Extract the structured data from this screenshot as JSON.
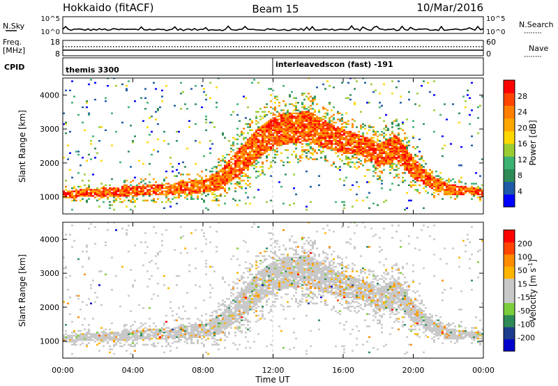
{
  "header": {
    "station": "Hokkaido (fitACF)",
    "beam": "Beam 15",
    "date": "10/Mar/2016"
  },
  "top_strip": {
    "left_label": "N.Sky",
    "left_ticks": [
      "10^5",
      "10^0"
    ],
    "right_ticks": [
      "10^5",
      "10^0"
    ],
    "right_label": "N.Search"
  },
  "freq_strip": {
    "label_line1": "Freq.",
    "label_line2": "[MHz]",
    "left_ticks": [
      "18",
      "8"
    ],
    "right_ticks": [
      "60",
      "0"
    ],
    "right_label": "Nave"
  },
  "cpid": {
    "label": "CPID",
    "segments": [
      {
        "name": "themis 3300",
        "start_h": 0
      },
      {
        "name": "interleavedscon (fast) -191",
        "start_h": 12
      }
    ]
  },
  "colors": {
    "power_scale": [
      "#0000ff",
      "#1e5aa8",
      "#2e8b57",
      "#3cb371",
      "#9acd32",
      "#ffd700",
      "#ffa500",
      "#ff7f00",
      "#ff4500",
      "#ff0000"
    ],
    "velocity_scale": [
      "#0000cd",
      "#1e3c8c",
      "#2e8b57",
      "#7ccd3c",
      "#c8c8c8",
      "#c8c8c8",
      "#ffb400",
      "#ff8c00",
      "#ff4500",
      "#ff0000"
    ]
  },
  "chart_data": [
    {
      "type": "heatmap",
      "ylabel": "Slant Range [km]",
      "xlim": [
        0,
        24
      ],
      "ylim": [
        500,
        4500
      ],
      "yticks": [
        "1000",
        "2000",
        "3000",
        "4000"
      ],
      "colorbar": {
        "label": "Power [dB]",
        "ticks": [
          "28",
          "24",
          "20",
          "16",
          "12",
          "8",
          "4"
        ]
      },
      "backscatter_band": {
        "hours": [
          0,
          2,
          4,
          6,
          8,
          9,
          10,
          11,
          12,
          13,
          14,
          15,
          16,
          17,
          18,
          19,
          20,
          21,
          22,
          23,
          24
        ],
        "center_km": [
          1050,
          1100,
          1150,
          1200,
          1300,
          1500,
          2000,
          2500,
          2900,
          3000,
          3050,
          2800,
          2600,
          2500,
          2200,
          2400,
          1800,
          1400,
          1200,
          1150,
          1100
        ],
        "width_km": [
          200,
          250,
          300,
          350,
          400,
          600,
          800,
          900,
          900,
          900,
          900,
          800,
          700,
          600,
          700,
          800,
          600,
          400,
          300,
          250,
          200
        ]
      }
    },
    {
      "type": "heatmap",
      "xlabel": "Time UT",
      "ylabel": "Slant Range [km]",
      "xlim": [
        0,
        24
      ],
      "ylim": [
        500,
        4500
      ],
      "xticks": [
        "00:00",
        "04:00",
        "08:00",
        "12:00",
        "16:00",
        "20:00",
        "00:00"
      ],
      "yticks": [
        "1000",
        "2000",
        "3000",
        "4000"
      ],
      "colorbar": {
        "label": "Velocity [m s-1]",
        "ticks": [
          "200",
          "100",
          "50",
          "15",
          "-15",
          "-50",
          "-100",
          "-200"
        ]
      }
    }
  ]
}
